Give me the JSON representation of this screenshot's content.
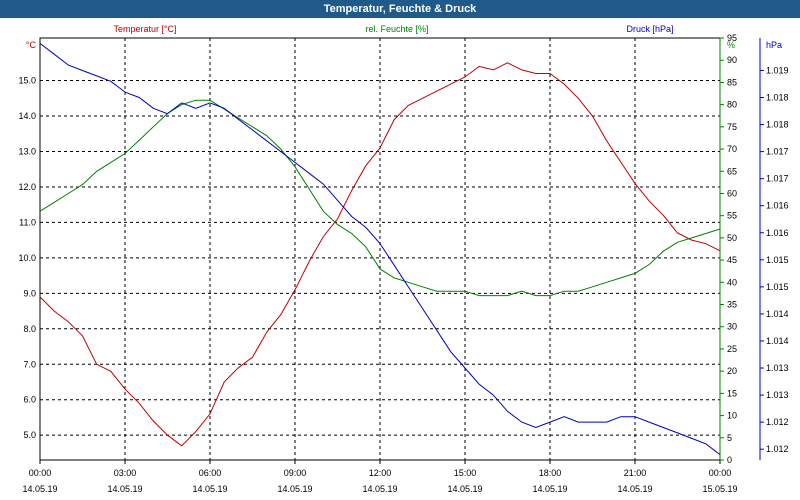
{
  "chart_data": {
    "type": "line",
    "title": "Temperatur, Feuchte & Druck",
    "x": [
      "00:00",
      "00:30",
      "01:00",
      "01:30",
      "02:00",
      "02:30",
      "03:00",
      "03:30",
      "04:00",
      "04:30",
      "05:00",
      "05:30",
      "06:00",
      "06:30",
      "07:00",
      "07:30",
      "08:00",
      "08:30",
      "09:00",
      "09:30",
      "10:00",
      "10:30",
      "11:00",
      "11:30",
      "12:00",
      "12:30",
      "13:00",
      "13:30",
      "14:00",
      "14:30",
      "15:00",
      "15:30",
      "16:00",
      "16:30",
      "17:00",
      "17:30",
      "18:00",
      "18:30",
      "19:00",
      "19:30",
      "20:00",
      "20:30",
      "21:00",
      "21:30",
      "22:00",
      "22:30",
      "23:00",
      "23:30",
      "00:00"
    ],
    "x_ticks": [
      {
        "time": "00:00",
        "date": "14.05.19"
      },
      {
        "time": "03:00",
        "date": "14.05.19"
      },
      {
        "time": "06:00",
        "date": "14.05.19"
      },
      {
        "time": "09:00",
        "date": "14.05.19"
      },
      {
        "time": "12:00",
        "date": "14.05.19"
      },
      {
        "time": "15:00",
        "date": "14.05.19"
      },
      {
        "time": "18:00",
        "date": "14.05.19"
      },
      {
        "time": "21:00",
        "date": "14.05.19"
      },
      {
        "time": "00:00",
        "date": "15.05.19"
      }
    ],
    "axes": {
      "left": {
        "label": "Temperatur [°C]",
        "unit": "°C",
        "range": [
          4.3,
          16.2
        ],
        "ticks": [
          "5.0",
          "6.0",
          "7.0",
          "8.0",
          "9.0",
          "10.0",
          "11.0",
          "12.0",
          "13.0",
          "14.0",
          "15.0"
        ],
        "color": "#c00000"
      },
      "right1": {
        "label": "rel. Feuchte [%]",
        "unit": "%",
        "range": [
          0,
          95
        ],
        "ticks": [
          "0",
          "5",
          "10",
          "15",
          "20",
          "25",
          "30",
          "35",
          "40",
          "45",
          "50",
          "55",
          "60",
          "65",
          "70",
          "75",
          "80",
          "85",
          "90",
          "95"
        ],
        "color": "#008000"
      },
      "right2": {
        "label": "Druck [hPa]",
        "unit": "hPa",
        "range": [
          1011.8,
          1019.6
        ],
        "ticks": [
          "1.012",
          "1.012",
          "1.013",
          "1.013",
          "1.014",
          "1.014",
          "1.015",
          "1.015",
          "1.016",
          "1.016",
          "1.017",
          "1.017",
          "1.018",
          "1.018",
          "1.019"
        ],
        "color": "#0000c0"
      }
    },
    "series": [
      {
        "name": "Temperatur [°C]",
        "axis": "left",
        "color": "#c00000",
        "values": [
          8.9,
          8.5,
          8.2,
          7.8,
          7.0,
          6.8,
          6.3,
          5.9,
          5.4,
          5.0,
          4.7,
          5.1,
          5.6,
          6.5,
          6.9,
          7.2,
          7.9,
          8.4,
          9.1,
          9.9,
          10.6,
          11.1,
          11.9,
          12.6,
          13.1,
          13.9,
          14.3,
          14.5,
          14.7,
          14.9,
          15.1,
          15.4,
          15.3,
          15.5,
          15.3,
          15.2,
          15.2,
          14.9,
          14.5,
          14.0,
          13.3,
          12.7,
          12.1,
          11.6,
          11.2,
          10.7,
          10.5,
          10.4,
          10.2
        ]
      },
      {
        "name": "rel. Feuchte [%]",
        "axis": "right1",
        "color": "#008000",
        "values": [
          56,
          58,
          60,
          62,
          65,
          67,
          69,
          72,
          75,
          78,
          80,
          81,
          81,
          79,
          77,
          75,
          73,
          70,
          66,
          61,
          56,
          53,
          51,
          48,
          43,
          41,
          40,
          39,
          38,
          38,
          38,
          37,
          37,
          37,
          38,
          37,
          37,
          38,
          38,
          39,
          40,
          41,
          42,
          44,
          47,
          49,
          50,
          51,
          52
        ]
      },
      {
        "name": "Druck [hPa]",
        "axis": "right2",
        "color": "#0000c0",
        "values": [
          1019.5,
          1019.3,
          1019.1,
          1019.0,
          1018.9,
          1018.8,
          1018.6,
          1018.5,
          1018.3,
          1018.2,
          1018.4,
          1018.3,
          1018.4,
          1018.3,
          1018.1,
          1017.9,
          1017.7,
          1017.5,
          1017.3,
          1017.1,
          1016.9,
          1016.6,
          1016.3,
          1016.1,
          1015.8,
          1015.4,
          1015.0,
          1014.6,
          1014.2,
          1013.8,
          1013.5,
          1013.2,
          1013.0,
          1012.7,
          1012.5,
          1012.4,
          1012.5,
          1012.6,
          1012.5,
          1012.5,
          1012.5,
          1012.6,
          1012.6,
          1012.5,
          1012.4,
          1012.3,
          1012.2,
          1012.1,
          1011.9
        ]
      }
    ],
    "grid": true
  }
}
